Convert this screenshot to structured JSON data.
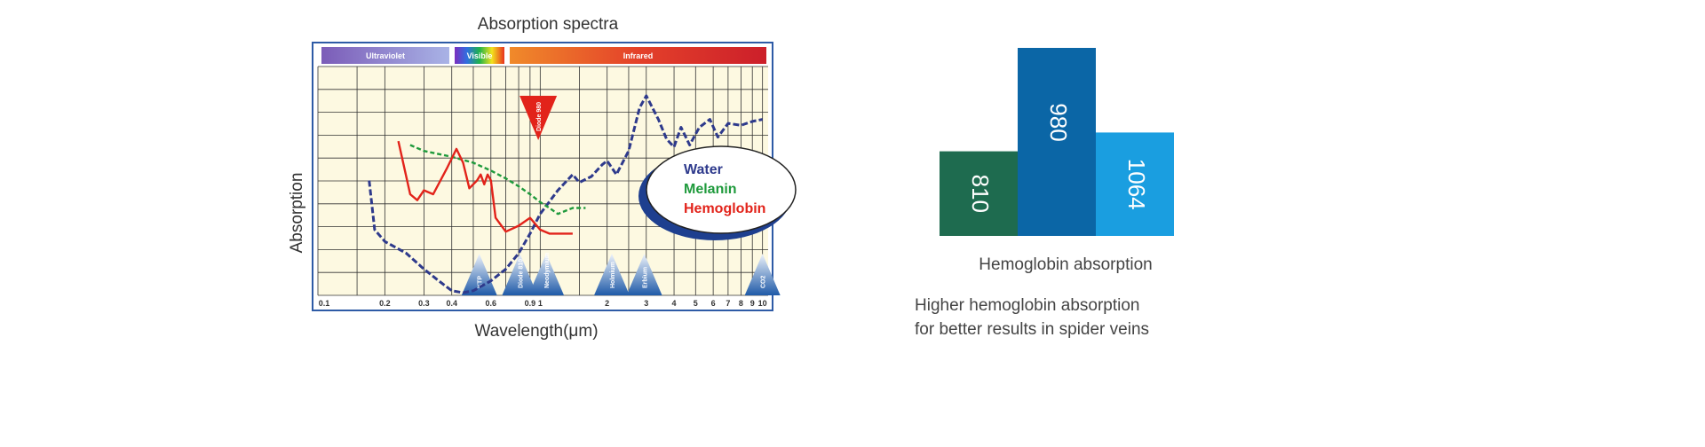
{
  "chart_data": [
    {
      "type": "line",
      "title": "Absorption spectra",
      "xlabel": "Wavelength(μm)",
      "ylabel": "Absorption",
      "x_scale": "log",
      "xlim": [
        0.1,
        10.6
      ],
      "grid": true,
      "x_ticks": [
        "0.1",
        "0.2",
        "0.3",
        "0.4",
        "0.6",
        "0.9",
        "1",
        "2",
        "3",
        "4",
        "5",
        "6",
        "7",
        "8",
        "9",
        "10"
      ],
      "bands": [
        {
          "label": "Ultraviolet",
          "color": "#8b6fc0"
        },
        {
          "label": "Visible",
          "color": "#4db848"
        },
        {
          "label": "Infrared",
          "color": "#e0502a"
        }
      ],
      "legend": {
        "placement": "right",
        "items": [
          {
            "label": "Water",
            "color": "#2e3a8c"
          },
          {
            "label": "Melanin",
            "color": "#1f9a3c"
          },
          {
            "label": "Hemoglobin",
            "color": "#e2231a"
          }
        ]
      },
      "series": [
        {
          "name": "Water",
          "color": "#2e3a8c",
          "style": "dashed",
          "points": [
            [
              0.17,
              0.57
            ],
            [
              0.18,
              0.32
            ],
            [
              0.2,
              0.26
            ],
            [
              0.25,
              0.2
            ],
            [
              0.3,
              0.12
            ],
            [
              0.35,
              0.06
            ],
            [
              0.4,
              0.01
            ],
            [
              0.45,
              0.0
            ],
            [
              0.5,
              0.01
            ],
            [
              0.6,
              0.06
            ],
            [
              0.7,
              0.12
            ],
            [
              0.8,
              0.2
            ],
            [
              0.9,
              0.3
            ],
            [
              1.0,
              0.4
            ],
            [
              1.2,
              0.52
            ],
            [
              1.4,
              0.6
            ],
            [
              1.5,
              0.56
            ],
            [
              1.7,
              0.59
            ],
            [
              1.9,
              0.65
            ],
            [
              2.0,
              0.67
            ],
            [
              2.2,
              0.6
            ],
            [
              2.5,
              0.72
            ],
            [
              2.8,
              0.94
            ],
            [
              3.0,
              1.0
            ],
            [
              3.4,
              0.88
            ],
            [
              3.7,
              0.78
            ],
            [
              4.0,
              0.74
            ],
            [
              4.3,
              0.84
            ],
            [
              4.7,
              0.75
            ],
            [
              5.2,
              0.84
            ],
            [
              5.8,
              0.88
            ],
            [
              6.3,
              0.79
            ],
            [
              7.0,
              0.86
            ],
            [
              8.0,
              0.85
            ],
            [
              9.0,
              0.87
            ],
            [
              10.0,
              0.88
            ]
          ]
        },
        {
          "name": "Melanin",
          "color": "#1f9a3c",
          "style": "dashed",
          "points": [
            [
              0.26,
              0.75
            ],
            [
              0.3,
              0.72
            ],
            [
              0.4,
              0.69
            ],
            [
              0.5,
              0.66
            ],
            [
              0.6,
              0.62
            ],
            [
              0.7,
              0.58
            ],
            [
              0.8,
              0.54
            ],
            [
              0.9,
              0.5
            ],
            [
              1.0,
              0.46
            ],
            [
              1.1,
              0.43
            ],
            [
              1.2,
              0.4
            ],
            [
              1.4,
              0.43
            ],
            [
              1.6,
              0.43
            ]
          ]
        },
        {
          "name": "Hemoglobin",
          "color": "#e2231a",
          "style": "solid",
          "points": [
            [
              0.23,
              0.77
            ],
            [
              0.26,
              0.5
            ],
            [
              0.28,
              0.47
            ],
            [
              0.3,
              0.52
            ],
            [
              0.33,
              0.5
            ],
            [
              0.38,
              0.63
            ],
            [
              0.42,
              0.73
            ],
            [
              0.45,
              0.66
            ],
            [
              0.48,
              0.53
            ],
            [
              0.52,
              0.57
            ],
            [
              0.54,
              0.6
            ],
            [
              0.56,
              0.55
            ],
            [
              0.58,
              0.6
            ],
            [
              0.6,
              0.57
            ],
            [
              0.63,
              0.38
            ],
            [
              0.7,
              0.31
            ],
            [
              0.8,
              0.34
            ],
            [
              0.9,
              0.38
            ],
            [
              1.0,
              0.32
            ],
            [
              1.1,
              0.3
            ],
            [
              1.3,
              0.3
            ],
            [
              1.4,
              0.3
            ]
          ]
        }
      ],
      "markers": [
        {
          "label": "KTP",
          "x": 0.532,
          "color": "#1f5aa8"
        },
        {
          "label": "Diode 810",
          "x": 0.81,
          "color": "#1f5aa8"
        },
        {
          "label": "Neodymium",
          "x": 1.064,
          "color": "#1f5aa8"
        },
        {
          "label": "Holmium",
          "x": 2.1,
          "color": "#1f5aa8"
        },
        {
          "label": "Erbium",
          "x": 2.94,
          "color": "#1f5aa8"
        },
        {
          "label": "CO2",
          "x": 10.0,
          "color": "#1f5aa8"
        }
      ],
      "highlight": {
        "label": "Diode 980",
        "x": 0.98,
        "color": "#e2231a"
      }
    },
    {
      "type": "bar",
      "xlabel": "Hemoglobin absorption",
      "categories": [
        "810",
        "980",
        "1064"
      ],
      "values": [
        0.45,
        1.0,
        0.55
      ],
      "colors": [
        "#1e6b4f",
        "#0b66a6",
        "#1a9ee0"
      ]
    }
  ],
  "caption": {
    "line1": "Higher hemoglobin absorption",
    "line2": "for better results in spider veins"
  }
}
